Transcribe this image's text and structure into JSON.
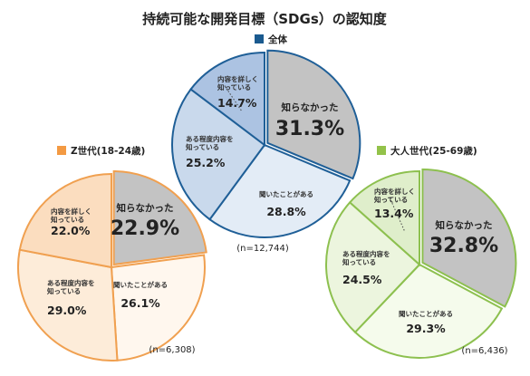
{
  "title": "持続可能な開発目標（SDGs）の認知度",
  "chart_data": [
    {
      "type": "pie",
      "legend": "全体",
      "legend_color": "#1a5a8f",
      "categories": [
        "知らなかった",
        "聞いたことがある",
        "ある程度内容を\n知っている",
        "内容を詳しく\n知っている"
      ],
      "values": [
        31.3,
        28.8,
        25.2,
        14.7
      ],
      "labels": [
        "31.3%",
        "28.8%",
        "25.2%",
        "14.7%"
      ],
      "n": "(n=12,744)",
      "stroke": "#1f5f97",
      "colors": [
        "#c3c3c3",
        "#e3ecf6",
        "#c9d9ec",
        "#acc3e2"
      ]
    },
    {
      "type": "pie",
      "legend": "Z世代(18-24歳)",
      "legend_color": "#f39a43",
      "categories": [
        "知らなかった",
        "聞いたことがある",
        "ある程度内容を\n知っている",
        "内容を詳しく\n知っている"
      ],
      "values": [
        22.9,
        26.1,
        29.0,
        22.0
      ],
      "labels": [
        "22.9%",
        "26.1%",
        "29.0%",
        "22.0%"
      ],
      "n": "(n=6,308)",
      "stroke": "#f0a050",
      "colors": [
        "#c3c3c3",
        "#fff7ee",
        "#fdecd9",
        "#fbddbf"
      ]
    },
    {
      "type": "pie",
      "legend": "大人世代(25-69歳)",
      "legend_color": "#93c24a",
      "categories": [
        "知らなかった",
        "聞いたことがある",
        "ある程度内容を\n知っている",
        "内容を詳しく\n知っている"
      ],
      "values": [
        32.8,
        29.3,
        24.5,
        13.4
      ],
      "labels": [
        "32.8%",
        "29.3%",
        "24.5%",
        "13.4%"
      ],
      "n": "(n=6,436)",
      "stroke": "#8dc04f",
      "colors": [
        "#c3c3c3",
        "#f5fbec",
        "#ecf5de",
        "#dfeecb"
      ]
    }
  ]
}
